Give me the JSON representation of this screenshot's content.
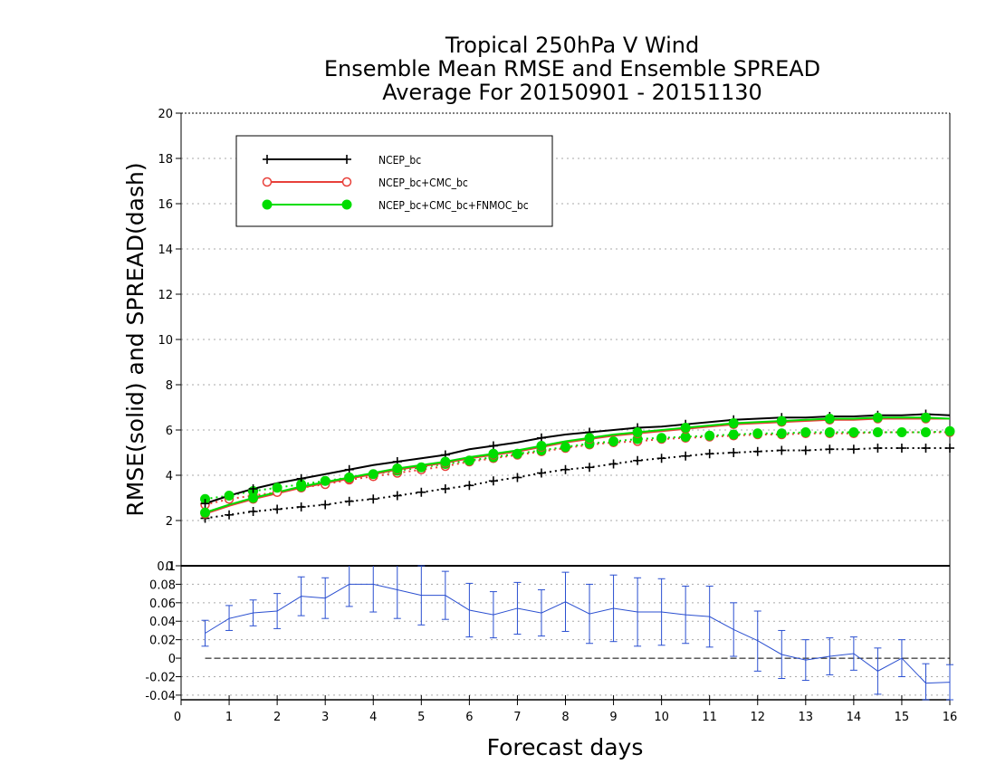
{
  "chart_data": [
    {
      "type": "line",
      "title": [
        "Tropical 250hPa V Wind",
        "Ensemble Mean RMSE and Ensemble SPREAD",
        "Average For 20150901 - 20151130"
      ],
      "xlabel": "Forecast days",
      "ylabel": "RMSE(solid) and SPREAD(dash)",
      "xlim": [
        0,
        16
      ],
      "ylim": [
        0,
        20
      ],
      "yticks": [
        0,
        2,
        4,
        6,
        8,
        10,
        12,
        14,
        16,
        18,
        20
      ],
      "xticks": [
        0,
        1,
        2,
        3,
        4,
        5,
        6,
        7,
        8,
        9,
        10,
        11,
        12,
        13,
        14,
        15,
        16
      ],
      "grid": "horizontal dotted",
      "legend_position": "top-left",
      "x": [
        0.5,
        1,
        1.5,
        2,
        2.5,
        3,
        3.5,
        4,
        4.5,
        5,
        5.5,
        6,
        6.5,
        7,
        7.5,
        8,
        8.5,
        9,
        9.5,
        10,
        10.5,
        11,
        11.5,
        12,
        12.5,
        13,
        13.5,
        14,
        14.5,
        15,
        15.5,
        16
      ],
      "series": [
        {
          "name": "NCEP_bc",
          "color": "#000000",
          "marker": "plus",
          "rmse": [
            2.75,
            3.1,
            3.4,
            3.65,
            3.85,
            4.05,
            4.25,
            4.45,
            4.6,
            4.75,
            4.9,
            5.15,
            5.3,
            5.45,
            5.65,
            5.8,
            5.9,
            6.0,
            6.1,
            6.15,
            6.25,
            6.35,
            6.45,
            6.5,
            6.55,
            6.55,
            6.6,
            6.6,
            6.65,
            6.65,
            6.7,
            6.65
          ],
          "spread": [
            2.1,
            2.25,
            2.4,
            2.5,
            2.6,
            2.7,
            2.85,
            2.95,
            3.1,
            3.25,
            3.4,
            3.55,
            3.75,
            3.9,
            4.1,
            4.25,
            4.35,
            4.5,
            4.65,
            4.75,
            4.85,
            4.95,
            5.0,
            5.05,
            5.1,
            5.1,
            5.15,
            5.15,
            5.2,
            5.2,
            5.2,
            5.2
          ]
        },
        {
          "name": "NCEP_bc+CMC_bc",
          "color": "#e8403a",
          "marker": "open-circle",
          "rmse": [
            2.3,
            2.65,
            2.95,
            3.2,
            3.45,
            3.65,
            3.85,
            4.05,
            4.25,
            4.4,
            4.55,
            4.75,
            4.9,
            5.05,
            5.25,
            5.45,
            5.6,
            5.75,
            5.85,
            5.95,
            6.05,
            6.15,
            6.25,
            6.3,
            6.35,
            6.4,
            6.45,
            6.45,
            6.5,
            6.5,
            6.5,
            6.5
          ],
          "spread": [
            2.7,
            2.95,
            3.1,
            3.25,
            3.45,
            3.6,
            3.8,
            3.95,
            4.1,
            4.25,
            4.4,
            4.6,
            4.75,
            4.9,
            5.05,
            5.2,
            5.35,
            5.45,
            5.5,
            5.6,
            5.65,
            5.7,
            5.75,
            5.8,
            5.8,
            5.85,
            5.85,
            5.85,
            5.9,
            5.9,
            5.9,
            5.9
          ]
        },
        {
          "name": "NCEP_bc+CMC_bc+FNMOC_bc",
          "color": "#00dd00",
          "marker": "filled-circle",
          "rmse": [
            2.35,
            2.7,
            3.0,
            3.25,
            3.5,
            3.7,
            3.9,
            4.1,
            4.3,
            4.45,
            4.6,
            4.8,
            4.95,
            5.1,
            5.3,
            5.5,
            5.65,
            5.8,
            5.9,
            6.0,
            6.1,
            6.2,
            6.3,
            6.35,
            6.4,
            6.45,
            6.5,
            6.5,
            6.55,
            6.55,
            6.55,
            6.5
          ],
          "spread": [
            2.95,
            3.1,
            3.3,
            3.45,
            3.6,
            3.75,
            3.9,
            4.05,
            4.2,
            4.35,
            4.5,
            4.65,
            4.8,
            4.95,
            5.1,
            5.25,
            5.4,
            5.5,
            5.6,
            5.65,
            5.7,
            5.75,
            5.8,
            5.85,
            5.85,
            5.9,
            5.9,
            5.9,
            5.9,
            5.9,
            5.9,
            5.95
          ]
        }
      ]
    },
    {
      "type": "line",
      "xlim": [
        0,
        16
      ],
      "ylim": [
        -0.045,
        0.1
      ],
      "yticks": [
        -0.04,
        -0.02,
        0,
        0.02,
        0.04,
        0.06,
        0.08,
        0.1
      ],
      "ytick_labels": [
        "-0.04",
        "-0.02",
        "0",
        "0.02",
        "0.04",
        "0.06",
        "0.08",
        "0.1"
      ],
      "xticks": [
        0,
        1,
        2,
        3,
        4,
        5,
        6,
        7,
        8,
        9,
        10,
        11,
        12,
        13,
        14,
        15,
        16
      ],
      "grid": "horizontal dotted",
      "reference_line": 0,
      "series": [
        {
          "color": "#2a4fd0",
          "x": [
            0.5,
            1,
            1.5,
            2,
            2.5,
            3,
            3.5,
            4,
            4.5,
            5,
            5.5,
            6,
            6.5,
            7,
            7.5,
            8,
            8.5,
            9,
            9.5,
            10,
            10.5,
            11,
            11.5,
            12,
            12.5,
            13,
            13.5,
            14,
            14.5,
            15,
            15.5,
            16
          ],
          "values": [
            0.027,
            0.043,
            0.049,
            0.051,
            0.067,
            0.065,
            0.08,
            0.08,
            0.074,
            0.068,
            0.068,
            0.052,
            0.047,
            0.054,
            0.049,
            0.061,
            0.048,
            0.054,
            0.05,
            0.05,
            0.047,
            0.045,
            0.031,
            0.019,
            0.004,
            -0.002,
            0.002,
            0.005,
            -0.014,
            0.0,
            -0.027,
            -0.026
          ],
          "lower": [
            0.013,
            0.03,
            0.035,
            0.032,
            0.046,
            0.043,
            0.056,
            0.05,
            0.043,
            0.036,
            0.042,
            0.023,
            0.022,
            0.026,
            0.024,
            0.029,
            0.016,
            0.018,
            0.013,
            0.014,
            0.016,
            0.012,
            0.002,
            -0.014,
            -0.022,
            -0.024,
            -0.018,
            -0.013,
            -0.039,
            -0.02,
            -0.045,
            -0.045
          ],
          "upper": [
            0.041,
            0.057,
            0.063,
            0.07,
            0.088,
            0.087,
            0.102,
            0.11,
            0.105,
            0.1,
            0.094,
            0.081,
            0.072,
            0.082,
            0.074,
            0.093,
            0.08,
            0.09,
            0.087,
            0.086,
            0.078,
            0.078,
            0.06,
            0.051,
            0.03,
            0.02,
            0.022,
            0.023,
            0.011,
            0.02,
            -0.006,
            -0.007
          ]
        }
      ]
    }
  ]
}
